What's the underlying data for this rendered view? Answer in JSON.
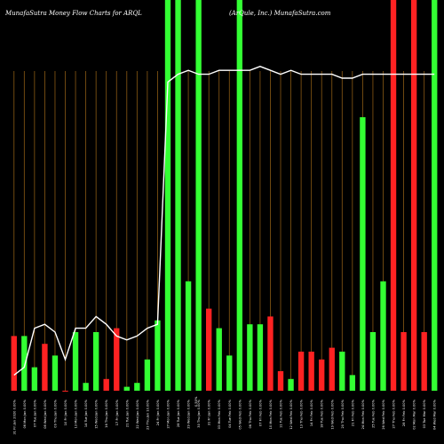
{
  "header": {
    "left": "MunafaSutra  Money Flow  Charts for ARQL",
    "right": "(ArQule,  Inc.) MunafaSutra.com"
  },
  "colors": {
    "background": "#000000",
    "green": "#33ff33",
    "red": "#ff2222",
    "gridline": "#8a5a14",
    "line": "#ffffff"
  },
  "chart_data": {
    "type": "bar",
    "title": "MunafaSutra  Money Flow  Charts for ARQL",
    "subtitle": "(ArQule,  Inc.) MunafaSutra.com",
    "ylim": [
      0,
      100
    ],
    "mid_label": "0.50%",
    "categories": [
      "31 Fri Jan 2020 0.00%",
      "06 Mon Jan 0.00%",
      "07 Tue Jan 0.00%",
      "08 Wed Jan 0.00%",
      "09 Thu Jan 0.00%",
      "10 Fri Jan 0.00%",
      "13 Mon Jan 0.00%",
      "14 Tue Jan 0.00%",
      "15 Wed Jan 0.00%",
      "16 Thu Jan 0.00%",
      "17 Fri Jan 0.00%",
      "21 Tue Jan 0.00%",
      "22 Wed Jan 0.00%",
      "23 Thu Jan 10.00%",
      "24 Fri Jan 0.00%",
      "27 Mon Jan 0.00%",
      "28 Tue Jan 0.00%",
      "29 Wed Jan 0.00%",
      "30 Thu Jan 0.00%",
      "31 Fri Jan 0.00%",
      "03 Mon Feb 0.00%",
      "04 Tue Feb 0.00%",
      "05 Wed Feb 0.00%",
      "06 Thu Feb 0.00%",
      "07 Fri Feb 0.00%",
      "10 Mon Feb 0.00%",
      "11 Tue Feb 0.00%",
      "12 Wed Feb 0.00%",
      "13 Thu Feb 0.00%",
      "14 Fri Feb 0.00%",
      "18 Tue Feb 0.00%",
      "19 Wed Feb 0.00%",
      "20 Thu Feb 0.00%",
      "21 Fri Feb 0.00%",
      "24 Mon Feb 0.00%",
      "25 Tue Feb 0.00%",
      "26 Wed Feb 0.00%",
      "27 Thu Feb 0.00%",
      "28 Fri Feb 0.00%",
      "02 Mon Mar 0.00%",
      "03 Tue Mar 0.00%",
      "04 Wed Mar 0.00%"
    ],
    "series": [
      {
        "values": [
          14,
          14,
          6,
          12,
          9,
          0,
          15,
          2,
          15,
          3,
          16,
          1,
          2,
          8,
          18,
          100,
          100,
          28,
          100,
          21,
          16,
          9,
          100,
          17,
          17,
          19,
          5,
          3,
          10,
          10,
          8,
          11,
          10,
          4,
          70,
          15,
          28,
          100,
          15,
          100,
          15,
          100
        ],
        "colors": [
          "red",
          "green",
          "green",
          "red",
          "green",
          "red",
          "green",
          "green",
          "green",
          "red",
          "red",
          "green",
          "green",
          "green",
          "green",
          "green",
          "green",
          "green",
          "green",
          "red",
          "green",
          "green",
          "green",
          "green",
          "green",
          "red",
          "red",
          "green",
          "red",
          "red",
          "red",
          "red",
          "green",
          "green",
          "green",
          "green",
          "green",
          "red",
          "red",
          "red",
          "red",
          "green"
        ]
      }
    ],
    "line_values": [
      4,
      6,
      16,
      17,
      15,
      8,
      16,
      16,
      19,
      17,
      14,
      13,
      14,
      16,
      17,
      79,
      81,
      82,
      81,
      81,
      82,
      82,
      82,
      82,
      83,
      82,
      81,
      82,
      81,
      81,
      81,
      81,
      80,
      80,
      81,
      81,
      81,
      81,
      81,
      81,
      81,
      81
    ]
  }
}
